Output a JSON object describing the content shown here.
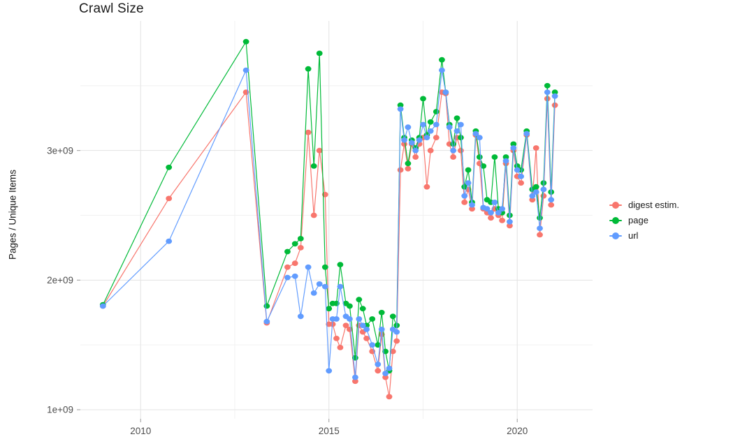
{
  "chart_data": {
    "type": "line",
    "title": "Crawl Size",
    "xlabel": "",
    "ylabel": "Pages / Unique Items",
    "values_unit": "billions of pages (value × 1e9)",
    "legend_position": "right",
    "grid": true,
    "background_color": "#FFFFFF",
    "grid_major_color": "#E3E3E3",
    "grid_minor_color": "#F1F1F1",
    "axis_text_color": "#4D4D4D",
    "x_range": [
      2008.4,
      2022.0
    ],
    "y_range": [
      0.93,
      4.0
    ],
    "x_ticks": {
      "values": [
        2010,
        2015,
        2020
      ],
      "labels": [
        "2010",
        "2015",
        "2020"
      ]
    },
    "y_ticks": {
      "values": [
        1,
        2,
        3
      ],
      "labels": [
        "1e+09",
        "2e+09",
        "3e+09"
      ]
    },
    "y_minor_ticks": [
      1.5,
      2.5,
      3.5
    ],
    "x_minor_ticks": [
      2012.5,
      2017.5
    ],
    "x": [
      2009.0,
      2010.75,
      2012.8,
      2013.35,
      2013.9,
      2014.1,
      2014.25,
      2014.45,
      2014.6,
      2014.75,
      2014.9,
      2015.0,
      2015.1,
      2015.2,
      2015.3,
      2015.45,
      2015.55,
      2015.7,
      2015.8,
      2015.9,
      2016.0,
      2016.15,
      2016.3,
      2016.4,
      2016.5,
      2016.6,
      2016.7,
      2016.8,
      2016.9,
      2017.0,
      2017.1,
      2017.2,
      2017.3,
      2017.4,
      2017.5,
      2017.6,
      2017.7,
      2017.85,
      2018.0,
      2018.1,
      2018.2,
      2018.3,
      2018.4,
      2018.5,
      2018.6,
      2018.7,
      2018.8,
      2018.9,
      2019.0,
      2019.1,
      2019.2,
      2019.3,
      2019.4,
      2019.5,
      2019.6,
      2019.7,
      2019.8,
      2019.9,
      2020.0,
      2020.1,
      2020.25,
      2020.4,
      2020.5,
      2020.6,
      2020.7,
      2020.8,
      2020.9,
      2021.0
    ],
    "series": [
      {
        "name": "digest estim.",
        "color": "#F8766D",
        "values": [
          1.8,
          2.63,
          3.45,
          1.67,
          2.1,
          2.13,
          2.25,
          3.14,
          2.5,
          3.0,
          2.66,
          1.66,
          1.66,
          1.55,
          1.48,
          1.65,
          1.62,
          1.22,
          1.65,
          1.6,
          1.55,
          1.45,
          1.3,
          1.58,
          1.25,
          1.1,
          1.45,
          1.53,
          2.85,
          3.05,
          2.86,
          3.05,
          2.95,
          3.05,
          3.1,
          2.72,
          3.0,
          3.1,
          3.45,
          3.44,
          3.05,
          2.95,
          3.1,
          3.0,
          2.6,
          2.7,
          2.55,
          3.12,
          2.9,
          2.55,
          2.52,
          2.48,
          2.55,
          2.5,
          2.46,
          2.9,
          2.42,
          3.0,
          2.8,
          2.75,
          3.12,
          2.62,
          3.02,
          2.35,
          2.65,
          3.4,
          2.58,
          3.35
        ]
      },
      {
        "name": "page",
        "color": "#00BA38",
        "values": [
          1.81,
          2.87,
          3.84,
          1.8,
          2.22,
          2.28,
          2.32,
          3.63,
          2.88,
          3.75,
          2.1,
          1.78,
          1.82,
          1.82,
          2.12,
          1.82,
          1.8,
          1.4,
          1.85,
          1.78,
          1.65,
          1.7,
          1.5,
          1.75,
          1.45,
          1.3,
          1.72,
          1.65,
          3.35,
          3.1,
          2.9,
          3.08,
          3.02,
          3.1,
          3.4,
          3.12,
          3.22,
          3.3,
          3.7,
          3.45,
          3.2,
          3.05,
          3.25,
          3.1,
          2.72,
          2.85,
          2.6,
          3.15,
          2.95,
          2.88,
          2.62,
          2.6,
          2.95,
          2.55,
          2.52,
          2.95,
          2.5,
          3.05,
          2.88,
          2.85,
          3.15,
          2.7,
          2.72,
          2.48,
          2.75,
          3.5,
          2.68,
          3.45
        ]
      },
      {
        "name": "url",
        "color": "#619CFF",
        "values": [
          1.8,
          2.3,
          3.62,
          1.68,
          2.02,
          2.03,
          1.72,
          2.1,
          1.9,
          1.97,
          1.95,
          1.3,
          1.7,
          1.7,
          1.95,
          1.72,
          1.7,
          1.25,
          1.7,
          1.65,
          1.62,
          1.5,
          1.35,
          1.62,
          1.28,
          1.32,
          1.62,
          1.6,
          3.32,
          3.08,
          3.18,
          3.06,
          3.0,
          3.08,
          3.2,
          3.1,
          3.15,
          3.2,
          3.62,
          3.45,
          3.18,
          3.0,
          3.15,
          3.2,
          2.65,
          2.75,
          2.58,
          3.13,
          3.1,
          2.56,
          2.55,
          2.52,
          2.6,
          2.52,
          2.55,
          2.92,
          2.45,
          3.02,
          2.85,
          2.8,
          3.13,
          2.65,
          2.68,
          2.4,
          2.7,
          3.45,
          2.62,
          3.42
        ]
      }
    ]
  }
}
